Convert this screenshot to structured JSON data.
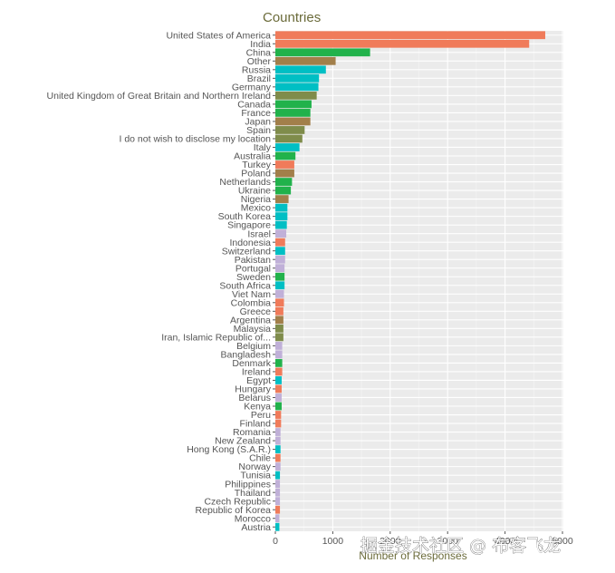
{
  "chart_data": {
    "type": "bar",
    "orientation": "horizontal",
    "title": "Countries",
    "xlabel": "Number of Responses",
    "ylabel": "",
    "xlim": [
      0,
      5000
    ],
    "xticks": [
      0,
      1000,
      2000,
      3000,
      4000,
      5000
    ],
    "xtick_labels": [
      "0",
      "1000",
      "2000",
      "3000",
      "4000",
      "5000"
    ],
    "grid": true,
    "legend": "none",
    "colors": [
      "#f07b5a",
      "#21b24b",
      "#a27f4a",
      "#00bfc4",
      "#7f8c4b",
      "#c0b0d8"
    ],
    "categories": [
      "United States of America",
      "India",
      "China",
      "Other",
      "Russia",
      "Brazil",
      "Germany",
      "United Kingdom of Great Britain and Northern Ireland",
      "Canada",
      "France",
      "Japan",
      "Spain",
      "I do not wish to disclose my location",
      "Italy",
      "Australia",
      "Turkey",
      "Poland",
      "Netherlands",
      "Ukraine",
      "Nigeria",
      "Mexico",
      "South Korea",
      "Singapore",
      "Israel",
      "Indonesia",
      "Switzerland",
      "Pakistan",
      "Portugal",
      "Sweden",
      "South Africa",
      "Viet Nam",
      "Colombia",
      "Greece",
      "Argentina",
      "Malaysia",
      "Iran, Islamic Republic of...",
      "Belgium",
      "Bangladesh",
      "Denmark",
      "Ireland",
      "Egypt",
      "Hungary",
      "Belarus",
      "Kenya",
      "Peru",
      "Finland",
      "Romania",
      "New Zealand",
      "Hong Kong (S.A.R.)",
      "Chile",
      "Norway",
      "Tunisia",
      "Philippines",
      "Thailand",
      "Czech Republic",
      "Republic of Korea",
      "Morocco",
      "Austria"
    ],
    "values": [
      4700,
      4420,
      1650,
      1050,
      880,
      760,
      750,
      720,
      630,
      610,
      610,
      510,
      470,
      420,
      350,
      330,
      330,
      290,
      270,
      230,
      210,
      210,
      200,
      190,
      170,
      170,
      170,
      160,
      160,
      160,
      150,
      150,
      140,
      140,
      140,
      140,
      120,
      120,
      120,
      120,
      110,
      110,
      110,
      110,
      100,
      100,
      90,
      90,
      90,
      90,
      90,
      80,
      80,
      80,
      80,
      80,
      70,
      70
    ],
    "bar_colors": [
      "#f07b5a",
      "#f07b5a",
      "#21b24b",
      "#a27f4a",
      "#00bfc4",
      "#00bfc4",
      "#00bfc4",
      "#7f8c4b",
      "#21b24b",
      "#21b24b",
      "#a27f4a",
      "#7f8c4b",
      "#7f8c4b",
      "#00bfc4",
      "#21b24b",
      "#f07b5a",
      "#a27f4a",
      "#21b24b",
      "#21b24b",
      "#a27f4a",
      "#00bfc4",
      "#00bfc4",
      "#00bfc4",
      "#c0b0d8",
      "#f07b5a",
      "#00bfc4",
      "#c0b0d8",
      "#c0b0d8",
      "#21b24b",
      "#00bfc4",
      "#c0b0d8",
      "#f07b5a",
      "#f07b5a",
      "#a27f4a",
      "#7f8c4b",
      "#7f8c4b",
      "#c0b0d8",
      "#c0b0d8",
      "#21b24b",
      "#f07b5a",
      "#00bfc4",
      "#f07b5a",
      "#c0b0d8",
      "#21b24b",
      "#f07b5a",
      "#f07b5a",
      "#c0b0d8",
      "#c0b0d8",
      "#00bfc4",
      "#f07b5a",
      "#c0b0d8",
      "#00bfc4",
      "#c0b0d8",
      "#c0b0d8",
      "#c0b0d8",
      "#f07b5a",
      "#c0b0d8",
      "#00bfc4"
    ]
  },
  "watermark": "掘金技术社区 @ 布客飞龙"
}
